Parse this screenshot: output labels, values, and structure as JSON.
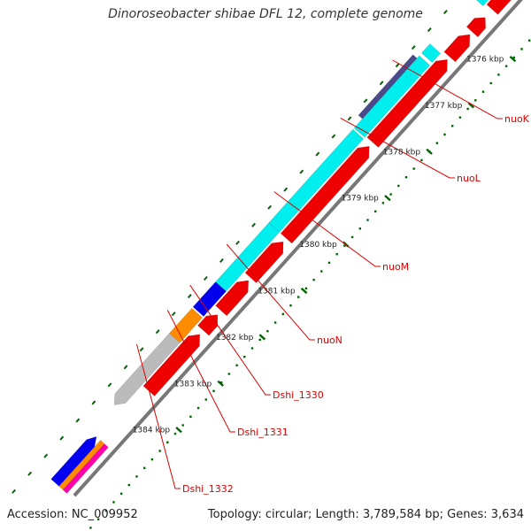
{
  "header": {
    "title": "Dinoroseobacter shibae DFL 12, complete genome"
  },
  "footer": {
    "accession": "Accession: NC_009952",
    "topology": "Topology: circular; Length: 3,789,584 bp; Genes: 3,634"
  },
  "ruler": {
    "labels": [
      "1376 kbp",
      "1377 kbp",
      "1378 kbp",
      "1379 kbp",
      "1380 kbp",
      "1381 kbp",
      "1382 kbp",
      "1383 kbp",
      "1384 kbp"
    ]
  },
  "genes": {
    "labels": [
      "nuoK",
      "nuoL",
      "nuoM",
      "nuoN",
      "Dshi_1330",
      "Dshi_1331",
      "Dshi_1332"
    ]
  },
  "colors": {
    "backbone": "#777777",
    "cds_forward": "#ee0000",
    "cds_reverse_cyan": "#00eeee",
    "blue": "#0000ee",
    "orange": "#ff8c00",
    "grey": "#bbbbbb",
    "slate": "#4a4a8a",
    "tick_green": "#006600",
    "label_red": "#dd0000"
  }
}
